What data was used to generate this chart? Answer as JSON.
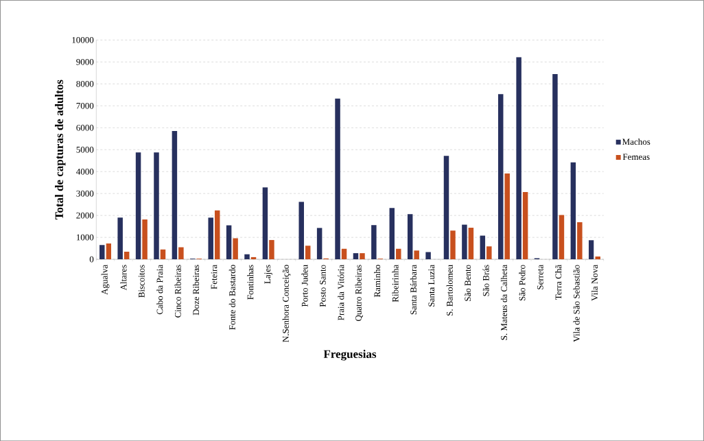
{
  "chart_data": {
    "type": "bar",
    "xlabel": "Freguesias",
    "ylabel": "Total de capturas de adultos",
    "categories": [
      "Agualva",
      "Altares",
      "Biscoitos",
      "Cabo da Praia",
      "Cinco Ribeiras",
      "Doze Ribeiras",
      "Feteira",
      "Fonte do Bastardo",
      "Fontinhas",
      "Lajes",
      "N.Senhora Conceição",
      "Porto Judeu",
      "Posto Santo",
      "Praia da Vitória",
      "Quatro Ribeiras",
      "Raminho",
      "Ribeirinha",
      "Santa Bárbara",
      "Santa Luzia",
      "S. Bartolomeu",
      "São Bento",
      "São Brás",
      "S. Mateus da Calheta",
      "São Pedro",
      "Serreta",
      "Terra Chã",
      "Vila de São Sebastião",
      "Vila Nova"
    ],
    "series": [
      {
        "name": "Machos",
        "color": "#27305e",
        "values": [
          650,
          1900,
          4870,
          4870,
          5850,
          30,
          1900,
          1550,
          230,
          3280,
          0,
          2620,
          1430,
          7330,
          280,
          1560,
          2340,
          2060,
          330,
          4720,
          1580,
          1080,
          7530,
          9220,
          50,
          8450,
          4420,
          870
        ]
      },
      {
        "name": "Femeas",
        "color": "#c8501e",
        "values": [
          720,
          350,
          1820,
          450,
          550,
          30,
          2230,
          960,
          100,
          880,
          0,
          620,
          40,
          480,
          280,
          30,
          480,
          400,
          0,
          1310,
          1440,
          590,
          3920,
          3070,
          0,
          2020,
          1690,
          130
        ]
      }
    ],
    "ylim": [
      0,
      10000
    ],
    "yticks": [
      0,
      1000,
      2000,
      3000,
      4000,
      5000,
      6000,
      7000,
      8000,
      9000,
      10000
    ],
    "grid": "y",
    "legend": "right"
  }
}
